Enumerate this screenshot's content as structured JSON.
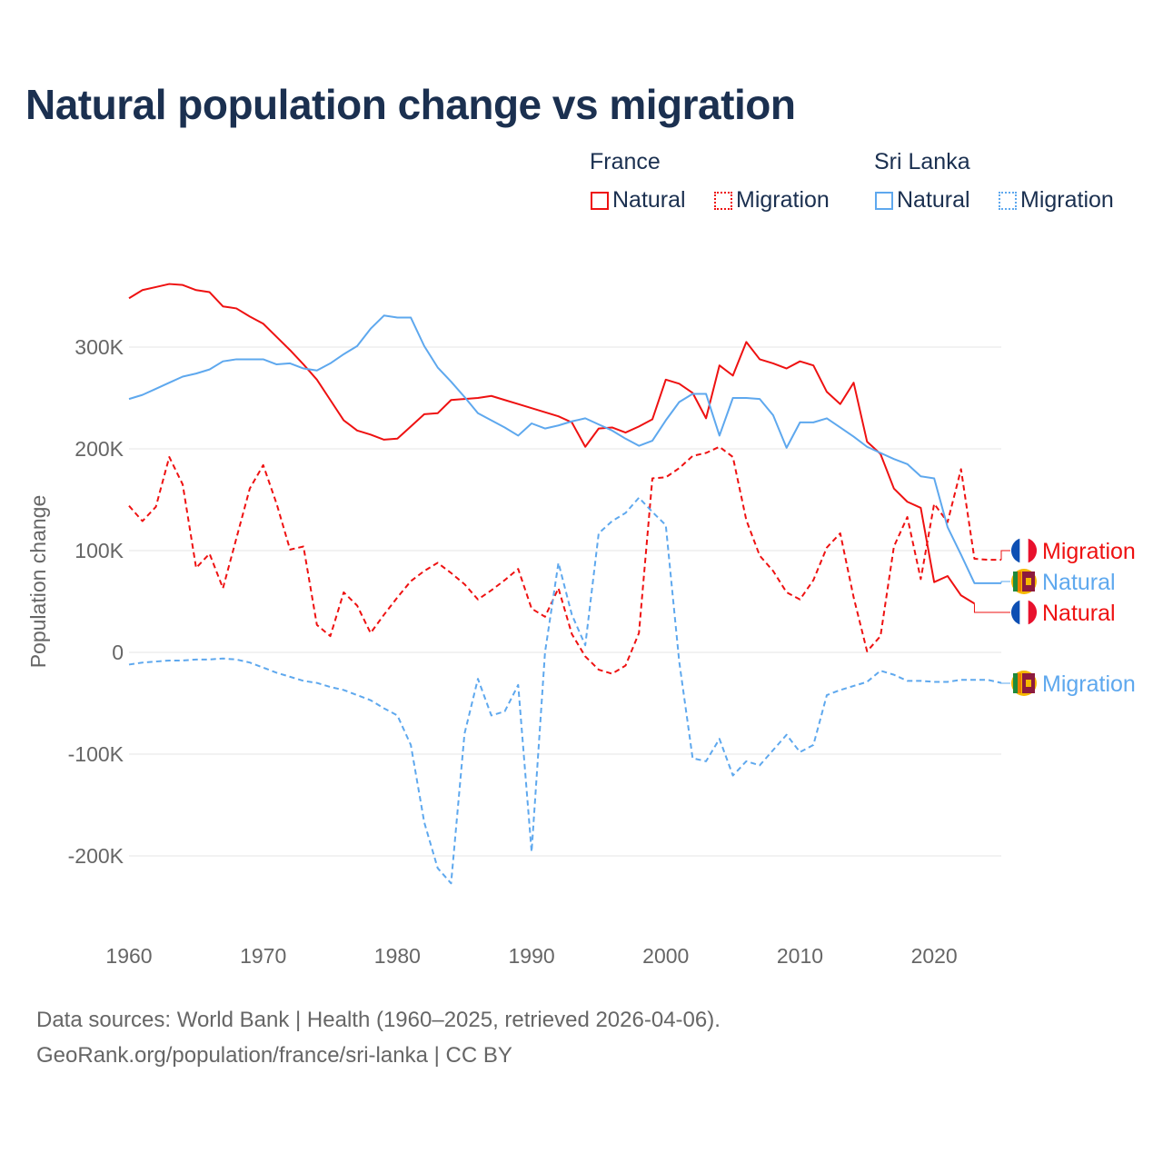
{
  "title": "Natural population change vs migration",
  "legend": {
    "groups": [
      {
        "name": "France",
        "items": [
          "Natural",
          "Migration"
        ]
      },
      {
        "name": "Sri Lanka",
        "items": [
          "Natural",
          "Migration"
        ]
      }
    ]
  },
  "colors": {
    "france": "#ee1111",
    "sri_lanka": "#5ea8ee",
    "grid": "#e6e6e6",
    "axis_text": "#666666"
  },
  "source": {
    "line1": "Data sources: World Bank | Health (1960–2025, retrieved 2026-04-06).",
    "line2": "GeoRank.org/population/france/sri-lanka | CC BY"
  },
  "chart_data": {
    "type": "line",
    "title": "Natural population change vs migration",
    "ylabel": "Population change",
    "xlabel": "",
    "xlim": [
      1960,
      2025
    ],
    "ylim": [
      -250000,
      400000
    ],
    "yticks": [
      -200000,
      -100000,
      0,
      100000,
      200000,
      300000
    ],
    "ytick_labels": [
      "-200K",
      "-100K",
      "0",
      "100K",
      "200K",
      "300K"
    ],
    "xticks": [
      1960,
      1970,
      1980,
      1990,
      2000,
      2010,
      2020
    ],
    "xtick_labels": [
      "1960",
      "1970",
      "1980",
      "1990",
      "2000",
      "2010",
      "2020"
    ],
    "grid": true,
    "legend_placement": "top-right",
    "units": "thousands",
    "series": [
      {
        "name": "France Natural",
        "country": "France",
        "kind": "Natural",
        "dash": false,
        "color": "#ee1111",
        "end_label": "Natural",
        "start": 1960,
        "values": [
          348,
          356,
          359,
          362,
          361,
          356,
          354,
          340,
          338,
          330,
          323,
          310,
          297,
          283,
          268,
          248,
          228,
          218,
          214,
          209,
          210,
          222,
          234,
          235,
          248,
          249,
          250,
          252,
          248,
          244,
          240,
          236,
          232,
          226,
          202,
          220,
          221,
          216,
          222,
          229,
          268,
          264,
          255,
          230,
          282,
          272,
          305,
          288,
          284,
          279,
          286,
          282,
          256,
          244,
          265,
          207,
          195,
          161,
          148,
          142,
          69,
          75,
          56,
          48
        ]
      },
      {
        "name": "France Migration",
        "country": "France",
        "kind": "Migration",
        "dash": true,
        "color": "#ee1111",
        "end_label": "Migration",
        "start": 1960,
        "values": [
          144,
          129,
          143,
          192,
          165,
          83,
          97,
          63,
          112,
          161,
          184,
          146,
          101,
          104,
          27,
          16,
          59,
          46,
          19,
          37,
          54,
          70,
          80,
          88,
          78,
          67,
          52,
          61,
          71,
          82,
          43,
          35,
          63,
          18,
          -4,
          -17,
          -21,
          -13,
          19,
          171,
          172,
          181,
          193,
          196,
          202,
          192,
          130,
          95,
          80,
          59,
          52,
          71,
          103,
          117,
          54,
          1,
          16,
          104,
          133,
          72,
          146,
          128,
          180,
          92,
          91,
          91
        ]
      },
      {
        "name": "Sri Lanka Natural",
        "country": "Sri Lanka",
        "kind": "Natural",
        "dash": false,
        "color": "#5ea8ee",
        "end_label": "Natural",
        "start": 1960,
        "values": [
          249,
          253,
          259,
          265,
          271,
          274,
          278,
          286,
          288,
          288,
          288,
          283,
          284,
          279,
          277,
          284,
          293,
          301,
          318,
          331,
          329,
          329,
          301,
          280,
          266,
          251,
          235,
          228,
          221,
          213,
          225,
          220,
          223,
          227,
          230,
          224,
          218,
          210,
          203,
          208,
          228,
          246,
          254,
          254,
          213,
          250,
          250,
          249,
          233,
          201,
          226,
          226,
          230,
          221,
          212,
          202,
          196,
          190,
          185,
          173,
          171,
          123,
          96,
          68,
          68,
          68
        ]
      },
      {
        "name": "Sri Lanka Migration",
        "country": "Sri Lanka",
        "kind": "Migration",
        "dash": true,
        "color": "#5ea8ee",
        "end_label": "Migration",
        "start": 1960,
        "values": [
          -12,
          -10,
          -9,
          -8,
          -8,
          -7,
          -7,
          -6,
          -7,
          -10,
          -15,
          -20,
          -24,
          -28,
          -30,
          -34,
          -37,
          -42,
          -47,
          -55,
          -62,
          -91,
          -167,
          -212,
          -227,
          -80,
          -26,
          -62,
          -58,
          -32,
          -196,
          0,
          88,
          37,
          7,
          117,
          129,
          137,
          152,
          138,
          125,
          -9,
          -104,
          -107,
          -85,
          -121,
          -107,
          -111,
          -96,
          -81,
          -98,
          -91,
          -42,
          -37,
          -33,
          -29,
          -18,
          -22,
          -28,
          -28,
          -29,
          -29,
          -27,
          -27,
          -27,
          -30
        ]
      }
    ]
  }
}
